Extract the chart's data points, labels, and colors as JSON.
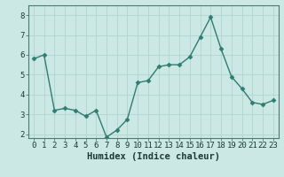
{
  "x": [
    0,
    1,
    2,
    3,
    4,
    5,
    6,
    7,
    8,
    9,
    10,
    11,
    12,
    13,
    14,
    15,
    16,
    17,
    18,
    19,
    20,
    21,
    22,
    23
  ],
  "y": [
    5.8,
    6.0,
    3.2,
    3.3,
    3.2,
    2.9,
    3.2,
    1.85,
    2.2,
    2.75,
    4.6,
    4.7,
    5.4,
    5.5,
    5.5,
    5.9,
    6.9,
    7.9,
    6.3,
    4.9,
    4.3,
    3.6,
    3.5,
    3.7
  ],
  "xlabel": "Humidex (Indice chaleur)",
  "ylim": [
    1.8,
    8.5
  ],
  "xlim": [
    -0.5,
    23.5
  ],
  "yticks": [
    2,
    3,
    4,
    5,
    6,
    7,
    8
  ],
  "xticks": [
    0,
    1,
    2,
    3,
    4,
    5,
    6,
    7,
    8,
    9,
    10,
    11,
    12,
    13,
    14,
    15,
    16,
    17,
    18,
    19,
    20,
    21,
    22,
    23
  ],
  "line_color": "#2e7d6e",
  "marker_color": "#2e7d6e",
  "bg_color": "#cce8e4",
  "grid_color": "#b0d4cf",
  "xlabel_fontsize": 7.5,
  "tick_fontsize": 6.5,
  "line_width": 1.0,
  "marker_size": 2.5
}
